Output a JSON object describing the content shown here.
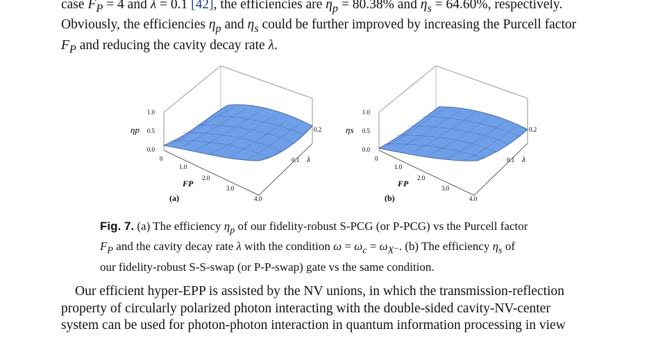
{
  "para1": {
    "line1": {
      "a": "case ",
      "fp": "F",
      "fp_sub": "P",
      "b": " = 4 and ",
      "lam": "λ",
      "c": " = 0.1 ",
      "cite": "[42]",
      "d": ", the efficiencies are ",
      "eta": "η",
      "sub_p": "p",
      "e": " = 80.38% and ",
      "sub_s": "s",
      "f": " = 64.60%, respectively."
    },
    "line2": {
      "a": "Obviously, the efficiencies ",
      "b": " and ",
      "c": " could be further improved by increasing the Purcell factor"
    },
    "line3": {
      "a": " and reducing the cavity decay rate ",
      "b": "."
    }
  },
  "figure": {
    "label": "Fig. 7.",
    "panel_a": {
      "label": "(a)",
      "zlabel": "ηp"
    },
    "panel_b": {
      "label": "(b)",
      "zlabel": "ηs"
    },
    "axis": {
      "z_ticks": [
        "1.0",
        "0.5",
        "0.0"
      ],
      "fp_ticks": [
        "1.0",
        "2.0",
        "3.0",
        "4.0"
      ],
      "fp_zero": "0",
      "lambda_ticks": [
        "0.1",
        "0.2"
      ],
      "fp_label": "FP",
      "lambda_label": "λ"
    }
  },
  "caption": {
    "line1": {
      "a": " (a) The efficiency ",
      "b": " of our fidelity-robust S-PCG (or P-PCG) vs the Purcell factor"
    },
    "line2": {
      "a": " and the cavity decay rate ",
      "b": " with the condition ",
      "w": "ω",
      "c": " = ",
      "wc_sub": "c",
      "d": " = ",
      "wx_sub": "X⁻",
      "e": ". (b) The efficiency ",
      "f": " of"
    },
    "line3": "our fidelity-robust S-S-swap (or P-P-swap) gate vs the same condition."
  },
  "para2": {
    "line1": "Our efficient hyper-EPP is assisted by the NV unions, in which the transmission-reflection",
    "line2": "property of circularly polarized photon interacting with the double-sided cavity-NV-center",
    "line3": "system can be used for photon-photon interaction in quantum information processing in view"
  }
}
